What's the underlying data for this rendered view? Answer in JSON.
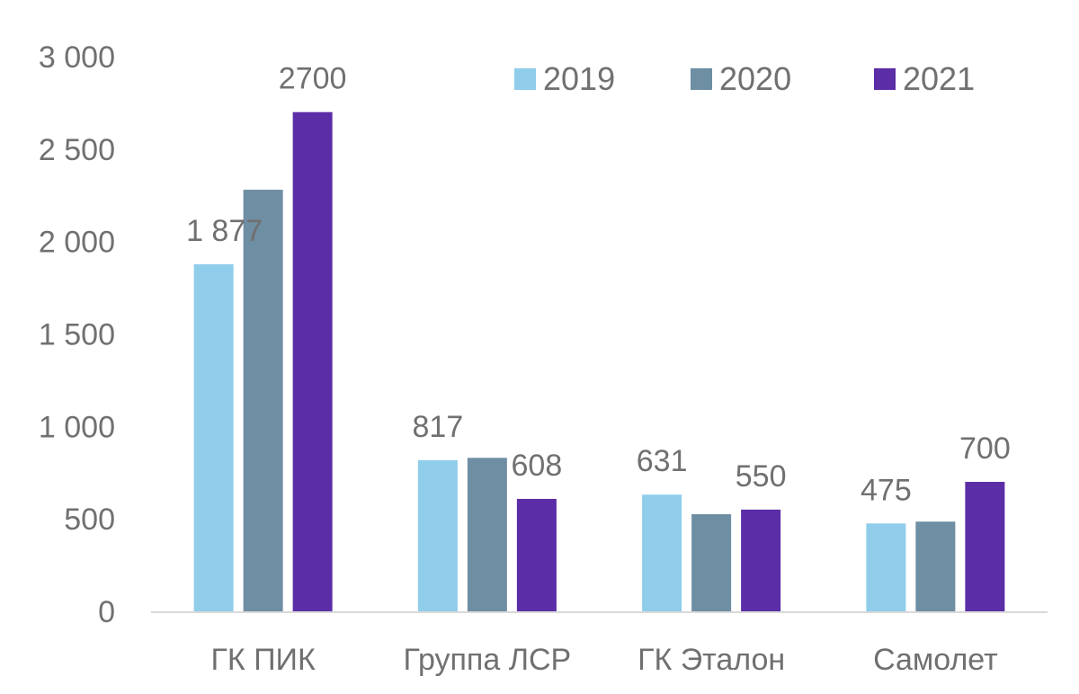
{
  "chart_data": {
    "type": "bar",
    "title": "",
    "xlabel": "",
    "ylabel": "",
    "ylim": [
      0,
      3000
    ],
    "yticks": [
      0,
      500,
      1000,
      1500,
      2000,
      2500,
      3000
    ],
    "ytick_labels": [
      "0",
      "500",
      "1 000",
      "1 500",
      "2 000",
      "2 500",
      "3 000"
    ],
    "categories": [
      "ГК ПИК",
      "Группа ЛСР",
      "ГК Эталон",
      "Самолет"
    ],
    "series": [
      {
        "name": "2019",
        "color": "#8FCDEA",
        "values": [
          1877,
          817,
          631,
          475
        ],
        "labels": [
          "1 877",
          "817",
          "631",
          "475"
        ]
      },
      {
        "name": "2020",
        "color": "#6E8EA3",
        "values": [
          2280,
          830,
          525,
          485
        ],
        "labels": [
          null,
          null,
          null,
          null
        ]
      },
      {
        "name": "2021",
        "color": "#5B2DA6",
        "values": [
          2700,
          608,
          550,
          700
        ],
        "labels": [
          "2700",
          "608",
          "550",
          "700"
        ]
      }
    ],
    "legend": "top-right",
    "grid": false
  }
}
